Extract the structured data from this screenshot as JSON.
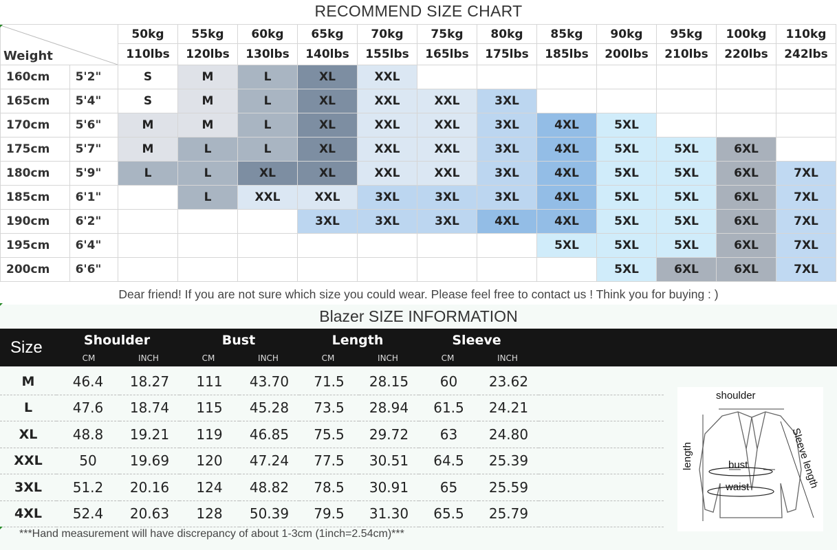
{
  "recommend": {
    "title": "RECOMMEND SIZE CHART",
    "corner_label": "Weight",
    "weights_kg": [
      "50kg",
      "55kg",
      "60kg",
      "65kg",
      "70kg",
      "75kg",
      "80kg",
      "85kg",
      "90kg",
      "95kg",
      "100kg",
      "110kg"
    ],
    "weights_lbs": [
      "110lbs",
      "120lbs",
      "130lbs",
      "140lbs",
      "155lbs",
      "165lbs",
      "175lbs",
      "185lbs",
      "200lbs",
      "210lbs",
      "220lbs",
      "242lbs"
    ],
    "rows": [
      {
        "cm": "160cm",
        "ft": "5'2\"",
        "sizes": [
          "S",
          "M",
          "L",
          "XL",
          "XXL",
          "",
          "",
          "",
          "",
          "",
          "",
          ""
        ]
      },
      {
        "cm": "165cm",
        "ft": "5'4\"",
        "sizes": [
          "S",
          "M",
          "L",
          "XL",
          "XXL",
          "XXL",
          "3XL",
          "",
          "",
          "",
          "",
          ""
        ]
      },
      {
        "cm": "170cm",
        "ft": "5'6\"",
        "sizes": [
          "M",
          "M",
          "L",
          "XL",
          "XXL",
          "XXL",
          "3XL",
          "4XL",
          "5XL",
          "",
          "",
          ""
        ]
      },
      {
        "cm": "175cm",
        "ft": "5'7\"",
        "sizes": [
          "M",
          "L",
          "L",
          "XL",
          "XXL",
          "XXL",
          "3XL",
          "4XL",
          "5XL",
          "5XL",
          "6XL",
          ""
        ]
      },
      {
        "cm": "180cm",
        "ft": "5'9\"",
        "sizes": [
          "L",
          "L",
          "XL",
          "XL",
          "XXL",
          "XXL",
          "3XL",
          "4XL",
          "5XL",
          "5XL",
          "6XL",
          "7XL"
        ]
      },
      {
        "cm": "185cm",
        "ft": "6'1\"",
        "sizes": [
          "",
          "L",
          "XXL",
          "XXL",
          "3XL",
          "3XL",
          "3XL",
          "4XL",
          "5XL",
          "5XL",
          "6XL",
          "7XL"
        ]
      },
      {
        "cm": "190cm",
        "ft": "6'2\"",
        "sizes": [
          "",
          "",
          "",
          "3XL",
          "3XL",
          "3XL",
          "4XL",
          "4XL",
          "5XL",
          "5XL",
          "6XL",
          "7XL"
        ]
      },
      {
        "cm": "195cm",
        "ft": "6'4\"",
        "sizes": [
          "",
          "",
          "",
          "",
          "",
          "",
          "",
          "5XL",
          "5XL",
          "5XL",
          "6XL",
          "7XL"
        ]
      },
      {
        "cm": "200cm",
        "ft": "6'6\"",
        "sizes": [
          "",
          "",
          "",
          "",
          "",
          "",
          "",
          "",
          "5XL",
          "6XL",
          "6XL",
          "7XL"
        ]
      }
    ],
    "size_colors": {
      "S": "#ffffff",
      "M": "#dfe2e8",
      "L": "#a9b5c2",
      "XL": "#7d8ea2",
      "XXL": "#dbe7f3",
      "3XL": "#bcd6f0",
      "4XL": "#93bde6",
      "5XL": "#d0ecfa",
      "6XL": "#a9b1bb",
      "7XL": "#c0d9f2"
    },
    "notice": "Dear friend! If you are not sure which size you could wear. Please feel free to contact us ! Think you for buying  : )"
  },
  "blazer": {
    "title": "Blazer SIZE INFORMATION",
    "size_header": "Size",
    "groups": [
      "Shoulder",
      "Bust",
      "Length",
      "Sleeve"
    ],
    "unit_cm": "CM",
    "unit_inch": "INCH",
    "rows": [
      {
        "size": "M",
        "vals": [
          "46.4",
          "18.27",
          "111",
          "43.70",
          "71.5",
          "28.15",
          "60",
          "23.62"
        ]
      },
      {
        "size": "L",
        "vals": [
          "47.6",
          "18.74",
          "115",
          "45.28",
          "73.5",
          "28.94",
          "61.5",
          "24.21"
        ]
      },
      {
        "size": "XL",
        "vals": [
          "48.8",
          "19.21",
          "119",
          "46.85",
          "75.5",
          "29.72",
          "63",
          "24.80"
        ]
      },
      {
        "size": "XXL",
        "vals": [
          "50",
          "19.69",
          "120",
          "47.24",
          "77.5",
          "30.51",
          "64.5",
          "25.39"
        ]
      },
      {
        "size": "3XL",
        "vals": [
          "51.2",
          "20.16",
          "124",
          "48.82",
          "78.5",
          "30.91",
          "65",
          "25.59"
        ]
      },
      {
        "size": "4XL",
        "vals": [
          "52.4",
          "20.63",
          "128",
          "50.39",
          "79.5",
          "31.30",
          "65.5",
          "25.79"
        ]
      }
    ],
    "footnote": "***Hand measurement will have discrepancy of about 1-3cm (1inch=2.54cm)***",
    "diagram_labels": {
      "shoulder": "shoulder",
      "length": "length",
      "bust": "bust",
      "waist": "waist",
      "sleeve": "Sleeve length"
    }
  }
}
